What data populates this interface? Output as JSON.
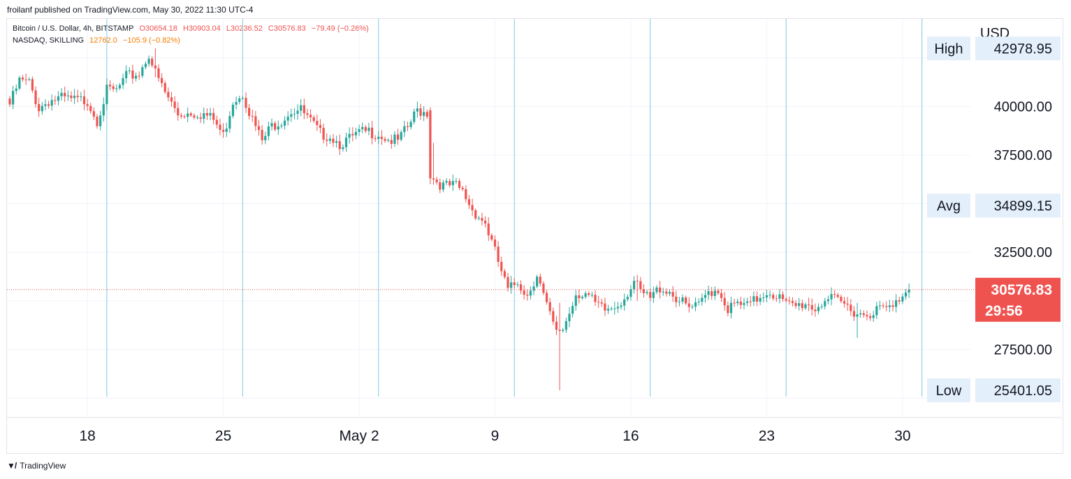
{
  "header": {
    "published_text": "froilanf published on TradingView.com, May 30, 2022 11:30 UTC-4"
  },
  "legend": {
    "series1": {
      "name": "Bitcoin / U.S. Dollar, 4h, BITSTAMP",
      "open": "O30654.18",
      "high": "H30903.04",
      "low": "L30236.52",
      "close": "C30576.83",
      "change": "−79.49 (−0.26%)"
    },
    "series2": {
      "name": "NASDAQ, SKILLING",
      "value": "12762.0",
      "change": "−105.9 (−0.82%)"
    }
  },
  "footer": {
    "brand": "TradingView"
  },
  "colors": {
    "up": "#26a69a",
    "down": "#ef5350",
    "separator": "#7ec8e3",
    "price_label_bg": "#ef5350",
    "stat_label_bg": "#e3effa"
  },
  "chart_data": {
    "type": "candlestick",
    "currency_label": "USD",
    "x_ticks": [
      {
        "label": "18",
        "index": 24
      },
      {
        "label": "25",
        "index": 66
      },
      {
        "label": "May 2",
        "index": 108
      },
      {
        "label": "9",
        "index": 150
      },
      {
        "label": "16",
        "index": 192
      },
      {
        "label": "23",
        "index": 234
      },
      {
        "label": "30",
        "index": 276
      }
    ],
    "week_separators": [
      30,
      72,
      114,
      156,
      198,
      240,
      282
    ],
    "y_ticks": [
      27500,
      32500,
      37500,
      40000
    ],
    "ylim": [
      24000,
      44500
    ],
    "stats": {
      "high_label": "High",
      "high_value": "42978.95",
      "avg_label": "Avg",
      "avg_value": "34899.15",
      "low_label": "Low",
      "low_value": "25401.05"
    },
    "last_price": {
      "value": 30576.83,
      "label": "30576.83",
      "countdown": "29:56"
    },
    "anchors": [
      [
        0,
        40100
      ],
      [
        3,
        41300
      ],
      [
        6,
        41200
      ],
      [
        9,
        39900
      ],
      [
        12,
        40300
      ],
      [
        16,
        40400
      ],
      [
        20,
        40300
      ],
      [
        24,
        40300
      ],
      [
        27,
        39300
      ],
      [
        30,
        40800
      ],
      [
        33,
        40800
      ],
      [
        36,
        41500
      ],
      [
        40,
        41700
      ],
      [
        43,
        42700
      ],
      [
        45,
        41700
      ],
      [
        48,
        40700
      ],
      [
        52,
        39600
      ],
      [
        56,
        39700
      ],
      [
        60,
        39600
      ],
      [
        63,
        39300
      ],
      [
        66,
        38500
      ],
      [
        69,
        40300
      ],
      [
        72,
        40700
      ],
      [
        75,
        39300
      ],
      [
        78,
        38200
      ],
      [
        81,
        39000
      ],
      [
        84,
        39300
      ],
      [
        87,
        39800
      ],
      [
        90,
        39800
      ],
      [
        93,
        39200
      ],
      [
        96,
        38600
      ],
      [
        99,
        38500
      ],
      [
        102,
        38100
      ],
      [
        105,
        38300
      ],
      [
        108,
        38600
      ],
      [
        111,
        38700
      ],
      [
        114,
        38600
      ],
      [
        117,
        38300
      ],
      [
        120,
        38200
      ],
      [
        123,
        38900
      ],
      [
        126,
        39800
      ],
      [
        129,
        39700
      ],
      [
        131,
        36300
      ],
      [
        134,
        35900
      ],
      [
        138,
        35900
      ],
      [
        140,
        35600
      ],
      [
        143,
        34700
      ],
      [
        147,
        34000
      ],
      [
        151,
        32000
      ],
      [
        154,
        30500
      ],
      [
        157,
        31000
      ],
      [
        160,
        30300
      ],
      [
        163,
        31400
      ],
      [
        166,
        29700
      ],
      [
        169,
        28300
      ],
      [
        171,
        28600
      ],
      [
        173,
        29400
      ],
      [
        175,
        30400
      ],
      [
        178,
        30400
      ],
      [
        181,
        29800
      ],
      [
        184,
        29500
      ],
      [
        187,
        29700
      ],
      [
        190,
        30200
      ],
      [
        193,
        31000
      ],
      [
        195,
        30400
      ],
      [
        198,
        30100
      ],
      [
        201,
        30700
      ],
      [
        204,
        30500
      ],
      [
        207,
        30000
      ],
      [
        210,
        29600
      ],
      [
        213,
        29700
      ],
      [
        216,
        30500
      ],
      [
        219,
        30600
      ],
      [
        222,
        29600
      ],
      [
        225,
        29800
      ],
      [
        228,
        29700
      ],
      [
        231,
        30100
      ],
      [
        234,
        30500
      ],
      [
        237,
        30300
      ],
      [
        240,
        29800
      ],
      [
        243,
        29700
      ],
      [
        246,
        29900
      ],
      [
        249,
        29600
      ],
      [
        252,
        30100
      ],
      [
        255,
        30000
      ],
      [
        258,
        29800
      ],
      [
        261,
        29500
      ],
      [
        264,
        29300
      ],
      [
        267,
        29500
      ],
      [
        270,
        29600
      ],
      [
        273,
        29600
      ],
      [
        276,
        30400
      ],
      [
        278,
        30580
      ]
    ],
    "drops": [
      [
        130,
        39800,
        36300
      ]
    ],
    "spikes": [
      [
        45,
        42979,
        41500
      ],
      [
        170,
        29900,
        25401
      ],
      [
        194,
        31200,
        30000
      ],
      [
        262,
        29900,
        28100
      ]
    ]
  }
}
